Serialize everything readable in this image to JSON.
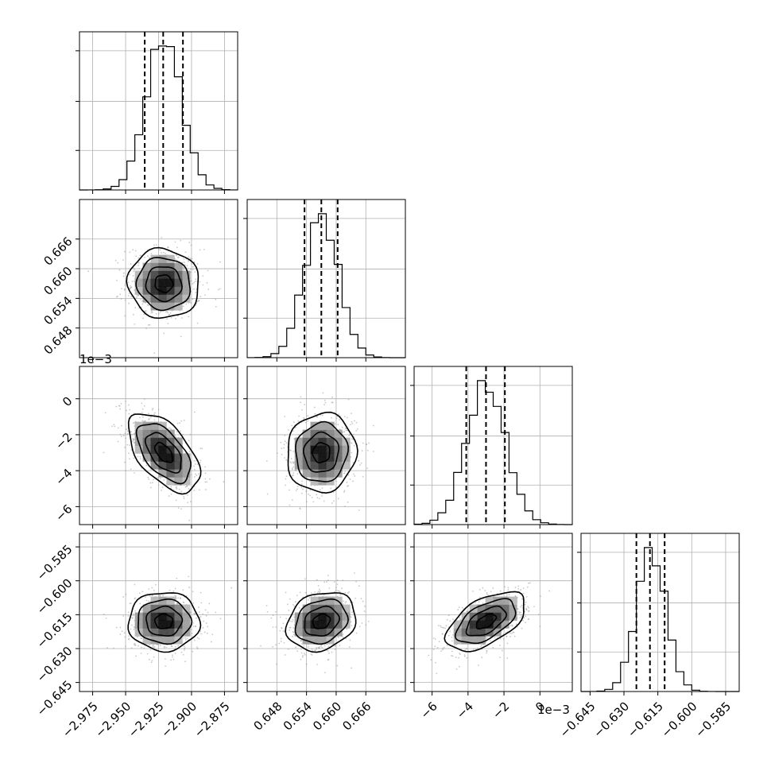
{
  "chart_data": {
    "type": "corner",
    "grid": true,
    "colors": {
      "line": "#000000",
      "grid": "#b0b0b0",
      "points": "#9a9a9a",
      "density": "#2b2b2b"
    },
    "parameters": [
      {
        "range": [
          -2.985,
          -2.865
        ],
        "ticks": [
          -2.975,
          -2.95,
          -2.925,
          -2.9,
          -2.875
        ],
        "tick_labels": [
          "−2.975",
          "−2.950",
          "−2.925",
          "−2.900",
          "−2.875"
        ],
        "offset_label": "",
        "mean": -2.921,
        "sigma": 0.0135,
        "quantiles": [
          -2.9355,
          -2.9215,
          -2.9065
        ],
        "hist_max_tick_labels": []
      },
      {
        "range": [
          0.642,
          0.674
        ],
        "ticks": [
          0.648,
          0.654,
          0.66,
          0.666
        ],
        "tick_labels": [
          "0.648",
          "0.654",
          "0.660",
          "0.666"
        ],
        "offset_label": "",
        "mean": 0.657,
        "sigma": 0.0035,
        "quantiles": [
          0.6536,
          0.657,
          0.6603
        ]
      },
      {
        "range": [
          -7.0,
          1.8
        ],
        "ticks": [
          -6,
          -4,
          -2,
          0
        ],
        "tick_labels": [
          "−6",
          "−4",
          "−2",
          "0"
        ],
        "offset_label": "1e−3",
        "mean": -3.0,
        "sigma": 1.1,
        "quantiles": [
          -4.1,
          -3.0,
          -1.95
        ]
      },
      {
        "range": [
          -0.649,
          -0.579
        ],
        "ticks": [
          -0.645,
          -0.63,
          -0.615,
          -0.6,
          -0.585
        ],
        "tick_labels": [
          "−0.645",
          "−0.630",
          "−0.615",
          "−0.600",
          "−0.585"
        ],
        "offset_label": "",
        "mean": -0.618,
        "sigma": 0.0065,
        "quantiles": [
          -0.6245,
          -0.6185,
          -0.612
        ]
      }
    ],
    "correlations": {
      "1-0": -0.05,
      "2-0": -0.55,
      "2-1": 0.05,
      "3-0": 0.0,
      "3-1": 0.2,
      "3-2": 0.55
    },
    "x_offset_label": "1e−3",
    "y_offset_label": "1e−3",
    "contour_levels_sigma": [
      0.5,
      1.0,
      1.5,
      2.0
    ]
  }
}
